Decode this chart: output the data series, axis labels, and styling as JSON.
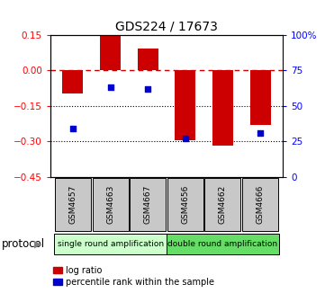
{
  "title": "GDS224 / 17673",
  "samples": [
    "GSM4657",
    "GSM4663",
    "GSM4667",
    "GSM4656",
    "GSM4662",
    "GSM4666"
  ],
  "log_ratios": [
    -0.1,
    0.145,
    0.09,
    -0.295,
    -0.32,
    -0.23
  ],
  "percentile_y_values": [
    -0.245,
    -0.07,
    -0.08,
    -0.29,
    null,
    -0.265
  ],
  "ylim": [
    -0.45,
    0.15
  ],
  "right_ylim": [
    0,
    100
  ],
  "yticks_left": [
    -0.45,
    -0.3,
    -0.15,
    0.0,
    0.15
  ],
  "yticks_right": [
    0,
    25,
    50,
    75,
    100
  ],
  "ytick_right_labels": [
    "0",
    "25",
    "50",
    "75",
    "100%"
  ],
  "bar_color": "#cc0000",
  "dot_color": "#0000cc",
  "zero_line_color": "#cc0000",
  "protocol_single": "single round amplification",
  "protocol_double": "double round amplification",
  "single_indices": [
    0,
    1,
    2
  ],
  "double_indices": [
    3,
    4,
    5
  ],
  "legend_log_ratio": "log ratio",
  "legend_percentile": "percentile rank within the sample",
  "protocol_label": "protocol",
  "single_color": "#ccffcc",
  "double_color": "#66dd66",
  "sample_box_color": "#c8c8c8"
}
